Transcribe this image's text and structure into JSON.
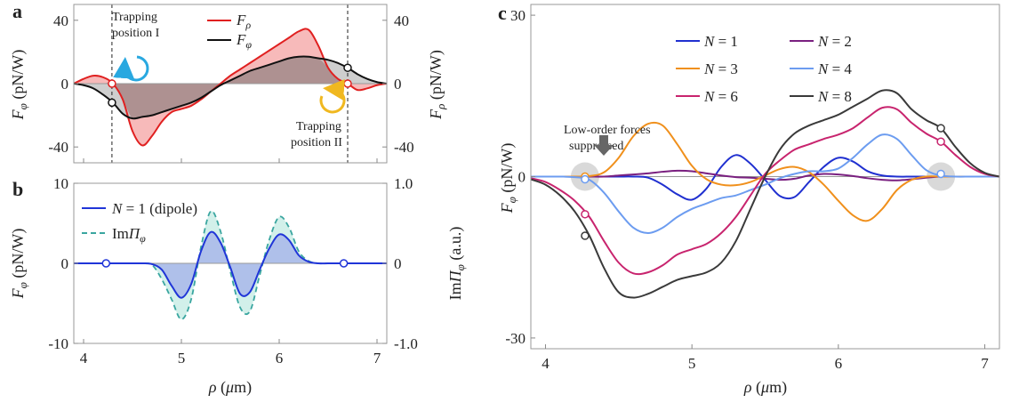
{
  "chart_data": [
    {
      "panel": "a",
      "type": "area",
      "xlim": [
        3.9,
        7.1
      ],
      "ylim": [
        -50,
        50
      ],
      "ylim_right": [
        -50,
        50
      ],
      "xticks": [
        4,
        5,
        6,
        7
      ],
      "yticks": [
        -40,
        0,
        40
      ],
      "yticks_right": [
        -40,
        0,
        40
      ],
      "ylabel": "F_φ (pN/W)",
      "ylabel_right": "F_ρ (pN/W)",
      "series": [
        {
          "name": "F_ρ",
          "color": "#e02020",
          "fill": "#f4a3a3",
          "x": [
            3.9,
            4.0,
            4.1,
            4.2,
            4.3,
            4.4,
            4.5,
            4.6,
            4.7,
            4.8,
            4.9,
            5.0,
            5.1,
            5.2,
            5.3,
            5.4,
            5.5,
            5.6,
            5.7,
            5.8,
            5.9,
            6.0,
            6.1,
            6.2,
            6.3,
            6.4,
            6.5,
            6.6,
            6.7,
            6.8,
            6.9,
            7.0,
            7.1
          ],
          "y": [
            0,
            3,
            5,
            4,
            0,
            -10,
            -30,
            -39,
            -33,
            -24,
            -18,
            -16,
            -14,
            -10,
            -5,
            0,
            5,
            9,
            13,
            17,
            21,
            25,
            29,
            33,
            34,
            24,
            10,
            3,
            0,
            -4,
            -3,
            -1,
            0
          ]
        },
        {
          "name": "F_φ",
          "color": "#111111",
          "fill": "#bdbdbd",
          "x": [
            3.9,
            4.0,
            4.1,
            4.2,
            4.3,
            4.4,
            4.5,
            4.6,
            4.7,
            4.8,
            4.9,
            5.0,
            5.1,
            5.2,
            5.3,
            5.4,
            5.5,
            5.6,
            5.7,
            5.8,
            5.9,
            6.0,
            6.1,
            6.2,
            6.3,
            6.4,
            6.5,
            6.6,
            6.7,
            6.8,
            6.9,
            7.0,
            7.1
          ],
          "y": [
            0,
            -1,
            -3,
            -7,
            -12,
            -19,
            -22,
            -21,
            -20,
            -18,
            -16,
            -14,
            -12,
            -9,
            -5,
            -1,
            2,
            5,
            8,
            10,
            12,
            14,
            16,
            17,
            17,
            16,
            15,
            13,
            10,
            6,
            3,
            1,
            0
          ]
        }
      ],
      "markers": [
        {
          "x": 4.29,
          "y": 0,
          "color": "#e02020"
        },
        {
          "x": 4.29,
          "y": -12,
          "color": "#111111"
        },
        {
          "x": 6.7,
          "y": 0,
          "color": "#e02020"
        },
        {
          "x": 6.7,
          "y": 10,
          "color": "#111111"
        }
      ],
      "vlines": [
        4.29,
        6.7
      ],
      "annotations": [
        {
          "lines": [
            "Trapping",
            "position I"
          ],
          "arrow_color": "#29a8e0"
        },
        {
          "lines": [
            "Trapping",
            "position II"
          ],
          "arrow_color": "#f0b820"
        }
      ]
    },
    {
      "panel": "b",
      "type": "area",
      "xlim": [
        3.9,
        7.1
      ],
      "ylim": [
        -10,
        10
      ],
      "ylim_right": [
        -1.0,
        1.0
      ],
      "xticks": [
        4,
        5,
        6,
        7
      ],
      "yticks": [
        -10,
        0,
        10
      ],
      "yticks_right": [
        "-1.0",
        "0",
        "1.0"
      ],
      "xlabel": "ρ (μm)",
      "ylabel": "F_φ (pN/W)",
      "ylabel_right": "ImΠ_φ (a.u.)",
      "series": [
        {
          "name": "N = 1 (dipole)",
          "color": "#2035d8",
          "fill": "#a9b7ea",
          "style": "solid",
          "x": [
            3.9,
            4.0,
            4.1,
            4.2,
            4.3,
            4.4,
            4.5,
            4.6,
            4.7,
            4.8,
            4.9,
            5.0,
            5.1,
            5.2,
            5.3,
            5.4,
            5.5,
            5.6,
            5.7,
            5.8,
            5.9,
            6.0,
            6.1,
            6.2,
            6.3,
            6.4,
            6.5,
            6.6,
            6.7,
            6.8,
            6.9,
            7.0,
            7.1
          ],
          "y": [
            0,
            0,
            0,
            0,
            0,
            0,
            0,
            0,
            -0.1,
            -0.8,
            -2.8,
            -4.3,
            -2.6,
            1.5,
            3.9,
            2.6,
            -0.5,
            -3.8,
            -3.6,
            -0.8,
            1.9,
            3.6,
            2.9,
            1.0,
            0.2,
            0,
            0,
            0,
            0,
            0,
            0,
            0,
            0
          ]
        },
        {
          "name": "ImΠ_φ",
          "color": "#3aa6a0",
          "fill": "#cdeee8",
          "style": "dashed",
          "x": [
            3.9,
            4.0,
            4.1,
            4.2,
            4.3,
            4.4,
            4.5,
            4.6,
            4.7,
            4.8,
            4.9,
            5.0,
            5.1,
            5.2,
            5.3,
            5.4,
            5.5,
            5.6,
            5.7,
            5.8,
            5.9,
            6.0,
            6.1,
            6.2,
            6.3,
            6.4,
            6.5,
            6.6,
            6.7,
            6.8,
            6.9,
            7.0,
            7.1
          ],
          "y": [
            0,
            0,
            0,
            0,
            0,
            0,
            0,
            0,
            -0.02,
            -0.2,
            -0.45,
            -0.7,
            -0.45,
            0.2,
            0.65,
            0.4,
            -0.1,
            -0.55,
            -0.6,
            -0.15,
            0.3,
            0.58,
            0.45,
            0.15,
            0.03,
            0,
            0,
            0,
            0,
            0,
            0,
            0,
            0
          ]
        }
      ],
      "markers": [
        {
          "x": 4.23,
          "y": 0,
          "color": "#2035d8"
        },
        {
          "x": 6.66,
          "y": 0,
          "color": "#2035d8"
        }
      ]
    },
    {
      "panel": "c",
      "type": "line",
      "xlim": [
        3.9,
        7.1
      ],
      "ylim": [
        -32,
        32
      ],
      "xticks": [
        4,
        5,
        6,
        7
      ],
      "yticks": [
        -30,
        0,
        30
      ],
      "xlabel": "ρ (μm)",
      "ylabel": "F_φ (pN/W)",
      "legend_position": "top-center",
      "series": [
        {
          "name": "N = 1",
          "color": "#2030d0",
          "x": [
            3.9,
            4.0,
            4.1,
            4.2,
            4.3,
            4.4,
            4.5,
            4.6,
            4.7,
            4.8,
            4.9,
            5.0,
            5.1,
            5.2,
            5.3,
            5.4,
            5.5,
            5.6,
            5.7,
            5.8,
            5.9,
            6.0,
            6.1,
            6.2,
            6.3,
            6.4,
            6.5,
            6.6,
            6.7,
            6.8,
            6.9,
            7.0,
            7.1
          ],
          "y": [
            0,
            0,
            0,
            0,
            0,
            0,
            0,
            0,
            -0.2,
            -1.5,
            -3.3,
            -4.3,
            -2.2,
            1.8,
            4,
            2.4,
            -0.6,
            -3.6,
            -3.8,
            -1.0,
            1.8,
            3.5,
            2.8,
            1.0,
            0.2,
            0,
            0,
            0,
            0,
            0,
            0,
            0,
            0
          ]
        },
        {
          "name": "N = 2",
          "color": "#7a2080",
          "x": [
            3.9,
            4.0,
            4.1,
            4.2,
            4.3,
            4.4,
            4.5,
            4.6,
            4.7,
            4.8,
            4.9,
            5.0,
            5.1,
            5.2,
            5.3,
            5.4,
            5.5,
            5.6,
            5.7,
            5.8,
            5.9,
            6.0,
            6.1,
            6.2,
            6.3,
            6.4,
            6.5,
            6.6,
            6.7,
            6.8,
            6.9,
            7.0,
            7.1
          ],
          "y": [
            0,
            0,
            0,
            0,
            0,
            0,
            0.2,
            0.4,
            0.6,
            0.9,
            1.1,
            1.0,
            0.6,
            0.2,
            -0.1,
            -0.2,
            -0.4,
            -0.6,
            -0.4,
            0.2,
            0.5,
            0.4,
            0.1,
            -0.3,
            -0.6,
            -0.7,
            -0.5,
            -0.2,
            0,
            0,
            0,
            0,
            0
          ]
        },
        {
          "name": "N = 3",
          "color": "#f0901c",
          "x": [
            3.9,
            4.0,
            4.1,
            4.2,
            4.3,
            4.4,
            4.5,
            4.6,
            4.7,
            4.8,
            4.9,
            5.0,
            5.1,
            5.2,
            5.3,
            5.4,
            5.5,
            5.6,
            5.7,
            5.8,
            5.9,
            6.0,
            6.1,
            6.2,
            6.3,
            6.4,
            6.5,
            6.6,
            6.7,
            6.8,
            6.9,
            7.0,
            7.1
          ],
          "y": [
            0,
            0,
            0,
            0,
            0.1,
            0.8,
            3.5,
            7.5,
            9.8,
            9.5,
            6.0,
            2.0,
            -0.5,
            -1.5,
            -1.6,
            -1.0,
            0.2,
            1.4,
            1.8,
            0.8,
            -1.5,
            -4.5,
            -7.2,
            -8.2,
            -6.0,
            -2.5,
            -0.6,
            0,
            0,
            0,
            0,
            0,
            0
          ]
        },
        {
          "name": "N = 4",
          "color": "#6c9cf0",
          "x": [
            3.9,
            4.0,
            4.1,
            4.2,
            4.3,
            4.4,
            4.5,
            4.6,
            4.7,
            4.8,
            4.9,
            5.0,
            5.1,
            5.2,
            5.3,
            5.4,
            5.5,
            5.6,
            5.7,
            5.8,
            5.9,
            6.0,
            6.1,
            6.2,
            6.3,
            6.4,
            6.5,
            6.6,
            6.7,
            6.8,
            6.9,
            7.0,
            7.1
          ],
          "y": [
            0,
            0,
            0,
            -0.1,
            -0.6,
            -3.0,
            -6.5,
            -9.5,
            -10.5,
            -9.5,
            -7.5,
            -6.0,
            -5.0,
            -4.0,
            -3.5,
            -2.5,
            -1.5,
            -0.3,
            0.5,
            1.0,
            1.0,
            1.5,
            3.5,
            6.0,
            7.8,
            7.0,
            4.0,
            1.2,
            0.2,
            0,
            0,
            0,
            0
          ]
        },
        {
          "name": "N = 6",
          "color": "#c8246e",
          "x": [
            3.9,
            4.0,
            4.1,
            4.2,
            4.3,
            4.4,
            4.5,
            4.6,
            4.7,
            4.8,
            4.9,
            5.0,
            5.1,
            5.2,
            5.3,
            5.4,
            5.5,
            5.6,
            5.7,
            5.8,
            5.9,
            6.0,
            6.1,
            6.2,
            6.3,
            6.4,
            6.5,
            6.6,
            6.7,
            6.8,
            6.9,
            7.0,
            7.1
          ],
          "y": [
            -0.3,
            -1.0,
            -2.5,
            -4.5,
            -7.5,
            -12,
            -16,
            -18,
            -17.8,
            -16.5,
            -14.5,
            -13.5,
            -12.5,
            -10.5,
            -7.5,
            -3.5,
            0.5,
            3.0,
            5.0,
            6.0,
            7.0,
            7.8,
            9.0,
            11.0,
            12.8,
            12.5,
            10.0,
            8.0,
            6.5,
            4.0,
            1.8,
            0.5,
            0
          ]
        },
        {
          "name": "N = 8",
          "color": "#3a3a3a",
          "x": [
            3.9,
            4.0,
            4.1,
            4.2,
            4.3,
            4.4,
            4.5,
            4.6,
            4.7,
            4.8,
            4.9,
            5.0,
            5.1,
            5.2,
            5.3,
            5.4,
            5.5,
            5.6,
            5.7,
            5.8,
            5.9,
            6.0,
            6.1,
            6.2,
            6.3,
            6.4,
            6.5,
            6.6,
            6.7,
            6.8,
            6.9,
            7.0,
            7.1
          ],
          "y": [
            -0.5,
            -1.5,
            -3.5,
            -6.5,
            -11,
            -17,
            -21.5,
            -22.5,
            -21.8,
            -20.5,
            -19.2,
            -18.5,
            -17.8,
            -16,
            -12,
            -6,
            0,
            5,
            8,
            9.5,
            10.5,
            11.5,
            13,
            14.5,
            16,
            15.5,
            12.5,
            10.5,
            9,
            5.5,
            2.5,
            0.7,
            0
          ]
        }
      ],
      "markers": [
        {
          "x": 4.27,
          "y": 0,
          "color": "#f0901c"
        },
        {
          "x": 4.27,
          "y": -0.5,
          "color": "#6c9cf0"
        },
        {
          "x": 4.27,
          "y": -7,
          "color": "#c8246e"
        },
        {
          "x": 4.27,
          "y": -11,
          "color": "#3a3a3a"
        },
        {
          "x": 6.7,
          "y": 0.5,
          "color": "#6c9cf0"
        },
        {
          "x": 6.7,
          "y": 6.5,
          "color": "#c8246e"
        },
        {
          "x": 6.7,
          "y": 9,
          "color": "#3a3a3a"
        }
      ],
      "highlights": [
        {
          "x": 4.27,
          "y": 0
        },
        {
          "x": 6.7,
          "y": 0
        }
      ],
      "annotations": [
        {
          "lines": [
            "Low-order forces",
            "suppressed"
          ]
        }
      ]
    }
  ]
}
